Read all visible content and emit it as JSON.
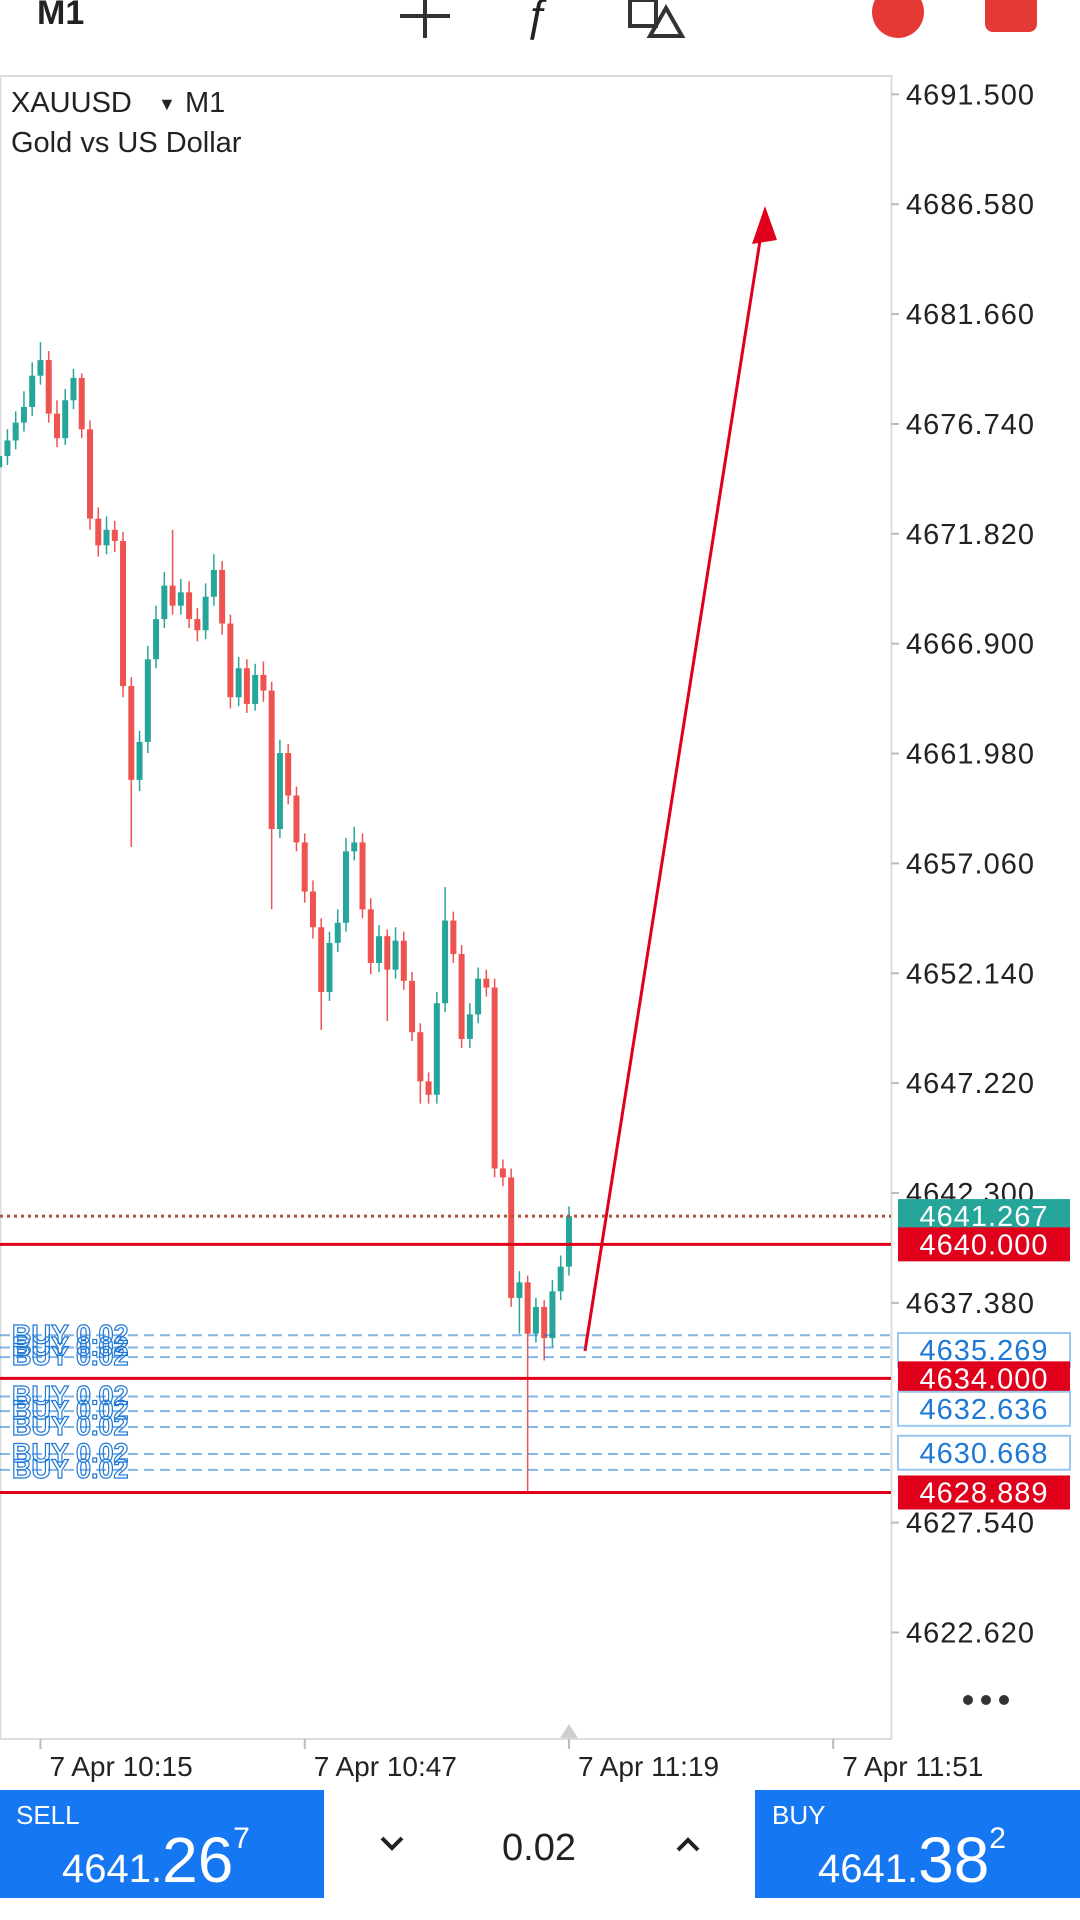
{
  "toolbar": {
    "timeframe": "M1"
  },
  "chart_data": {
    "type": "candlestick",
    "title": "XAUUSD",
    "timeframe": "M1",
    "subtitle": "Gold vs US Dollar",
    "open": [
      4674.8,
      4675.3,
      4676.0,
      4676.8,
      4677.5,
      4678.9,
      4679.6,
      4677.2,
      4676.1,
      4677.8,
      4678.8,
      4676.5,
      4672.5,
      4671.3,
      4672.0,
      4671.5,
      4665.0,
      4660.8,
      4662.5,
      4666.2,
      4668.0,
      4669.5,
      4668.6,
      4669.2,
      4668.0,
      4667.5,
      4669.0,
      4670.2,
      4667.8,
      4664.5,
      4665.8,
      4664.2,
      4665.5,
      4664.8,
      4658.6,
      4662.0,
      4660.1,
      4658.0,
      4655.8,
      4654.2,
      4651.3,
      4653.5,
      4654.4,
      4657.6,
      4658.0,
      4655.0,
      4652.6,
      4653.8,
      4652.3,
      4653.6,
      4651.8,
      4649.5,
      4647.3,
      4646.7,
      4650.8,
      4654.5,
      4653.0,
      4649.2,
      4650.3,
      4651.9,
      4651.5,
      4643.4,
      4643.0,
      4637.6,
      4638.3,
      4636.0,
      4637.2,
      4635.8,
      4637.9,
      4639.0
    ],
    "high": [
      4675.9,
      4676.5,
      4677.3,
      4678.2,
      4679.5,
      4680.4,
      4680.0,
      4677.8,
      4678.3,
      4679.2,
      4679.0,
      4676.9,
      4673.0,
      4672.6,
      4672.4,
      4671.9,
      4665.4,
      4663.0,
      4666.8,
      4668.6,
      4670.1,
      4672.0,
      4669.8,
      4669.7,
      4668.5,
      4669.6,
      4670.9,
      4670.6,
      4668.2,
      4666.3,
      4666.2,
      4666.0,
      4666.1,
      4665.2,
      4662.6,
      4662.4,
      4660.5,
      4658.4,
      4656.3,
      4654.6,
      4654.0,
      4655.0,
      4658.2,
      4658.7,
      4658.4,
      4655.5,
      4654.3,
      4654.1,
      4654.2,
      4654.0,
      4652.2,
      4649.9,
      4647.7,
      4651.3,
      4656.0,
      4654.9,
      4653.4,
      4650.8,
      4652.4,
      4652.3,
      4651.9,
      4643.8,
      4643.4,
      4638.8,
      4638.6,
      4637.6,
      4637.5,
      4638.4,
      4639.5,
      4641.7
    ],
    "low": [
      4674.3,
      4674.9,
      4675.6,
      4676.4,
      4677.1,
      4678.5,
      4676.8,
      4675.7,
      4675.8,
      4677.4,
      4676.1,
      4672.0,
      4670.8,
      4670.9,
      4671.0,
      4664.5,
      4657.8,
      4660.3,
      4662.0,
      4665.8,
      4667.6,
      4668.2,
      4668.2,
      4667.6,
      4667.0,
      4667.1,
      4668.6,
      4667.3,
      4664.0,
      4664.1,
      4663.8,
      4663.9,
      4664.3,
      4655.0,
      4658.2,
      4659.7,
      4657.6,
      4655.3,
      4653.7,
      4649.6,
      4650.9,
      4653.1,
      4654.0,
      4657.2,
      4654.6,
      4652.1,
      4652.2,
      4650.0,
      4651.9,
      4651.4,
      4649.1,
      4646.3,
      4646.3,
      4646.3,
      4650.4,
      4652.6,
      4648.8,
      4648.8,
      4649.9,
      4651.1,
      4643.0,
      4642.6,
      4637.2,
      4636.0,
      4628.9,
      4635.6,
      4634.8,
      4635.4,
      4637.5,
      4638.6
    ],
    "close": [
      4675.3,
      4676.0,
      4676.8,
      4677.5,
      4678.9,
      4679.6,
      4677.2,
      4676.1,
      4677.8,
      4678.8,
      4676.5,
      4672.5,
      4671.3,
      4672.0,
      4671.5,
      4665.0,
      4660.8,
      4662.5,
      4666.2,
      4668.0,
      4669.5,
      4668.6,
      4669.2,
      4668.0,
      4667.5,
      4669.0,
      4670.2,
      4667.8,
      4664.5,
      4665.8,
      4664.2,
      4665.5,
      4664.8,
      4658.6,
      4662.0,
      4660.1,
      4658.0,
      4655.8,
      4654.2,
      4651.3,
      4653.5,
      4654.4,
      4657.6,
      4658.0,
      4655.0,
      4652.6,
      4653.8,
      4652.3,
      4653.6,
      4651.8,
      4649.5,
      4647.3,
      4646.7,
      4650.8,
      4654.5,
      4653.0,
      4649.2,
      4650.3,
      4651.9,
      4651.5,
      4643.4,
      4643.0,
      4637.6,
      4638.3,
      4636.0,
      4637.2,
      4635.8,
      4637.9,
      4639.0,
      4641.267
    ],
    "up_color": "#26a69a",
    "down_color": "#ef5350",
    "xlim": [
      0.1,
      108
    ],
    "xticks": [
      {
        "value": 5,
        "label": "7 Apr 10:15"
      },
      {
        "value": 37,
        "label": "7 Apr 10:47"
      },
      {
        "value": 69,
        "label": "7 Apr 11:19"
      },
      {
        "value": 101,
        "label": "7 Apr 11:51"
      }
    ],
    "ylim": [
      4617.85,
      4692.32
    ],
    "yticks": [
      {
        "value": 4691.5,
        "label": "4691.500"
      },
      {
        "value": 4686.58,
        "label": "4686.580"
      },
      {
        "value": 4681.66,
        "label": "4681.660"
      },
      {
        "value": 4676.74,
        "label": "4676.740"
      },
      {
        "value": 4671.82,
        "label": "4671.820"
      },
      {
        "value": 4666.9,
        "label": "4666.900"
      },
      {
        "value": 4661.98,
        "label": "4661.980"
      },
      {
        "value": 4657.06,
        "label": "4657.060"
      },
      {
        "value": 4652.14,
        "label": "4652.140"
      },
      {
        "value": 4647.22,
        "label": "4647.220"
      },
      {
        "value": 4642.3,
        "label": "4642.300"
      },
      {
        "value": 4637.38,
        "label": "4637.380"
      },
      {
        "value": 4627.54,
        "label": "4627.540"
      },
      {
        "value": 4622.62,
        "label": "4622.620"
      }
    ],
    "grid": false,
    "levels": [
      {
        "value": 4641.267,
        "label": "4641.267",
        "color": "#26a69a",
        "box": "filled",
        "line": "dotted",
        "line_color": "#b5513e"
      },
      {
        "value": 4640,
        "label": "4640.000",
        "color": "#e0001b",
        "box": "filled",
        "line": "solid",
        "line_color": "#e0001b"
      },
      {
        "value": 4635.269,
        "label": "4635.269",
        "color": "#1e78d6",
        "box": "outline",
        "line": "none",
        "line_color": "#1e78d6"
      },
      {
        "value": 4634,
        "label": "4634.000",
        "color": "#e0001b",
        "box": "filled",
        "line": "solid",
        "line_color": "#e0001b"
      },
      {
        "value": 4632.636,
        "label": "4632.636",
        "color": "#1e78d6",
        "box": "outline",
        "line": "none",
        "line_color": "#1e78d6"
      },
      {
        "value": 4630.668,
        "label": "4630.668",
        "color": "#1e78d6",
        "box": "outline",
        "line": "none",
        "line_color": "#1e78d6"
      },
      {
        "value": 4628.889,
        "label": "4628.889",
        "color": "#e0001b",
        "box": "filled",
        "line": "solid",
        "line_color": "#e0001b"
      }
    ],
    "order_color": "#1e78d6",
    "orders": [
      {
        "label": "BUY 0.02",
        "value": 4635.93
      },
      {
        "label": "BUY 0.02",
        "value": 4635.38
      },
      {
        "label": "BUY 0.02",
        "value": 4634.95
      },
      {
        "label": "BUY 0.02",
        "value": 4633.19
      },
      {
        "label": "BUY 0.02",
        "value": 4632.53
      },
      {
        "label": "BUY 0.02",
        "value": 4631.82
      },
      {
        "label": "BUY 0.02",
        "value": 4630.61
      },
      {
        "label": "BUY 0.02",
        "value": 4629.9
      }
    ]
  },
  "trade_panel": {
    "sell": {
      "label": "SELL",
      "price_head": "4641.",
      "price_big": "26",
      "price_tail": "7"
    },
    "lot": "0.02",
    "buy": {
      "label": "BUY",
      "price_head": "4641.",
      "price_big": "38",
      "price_tail": "2"
    }
  }
}
